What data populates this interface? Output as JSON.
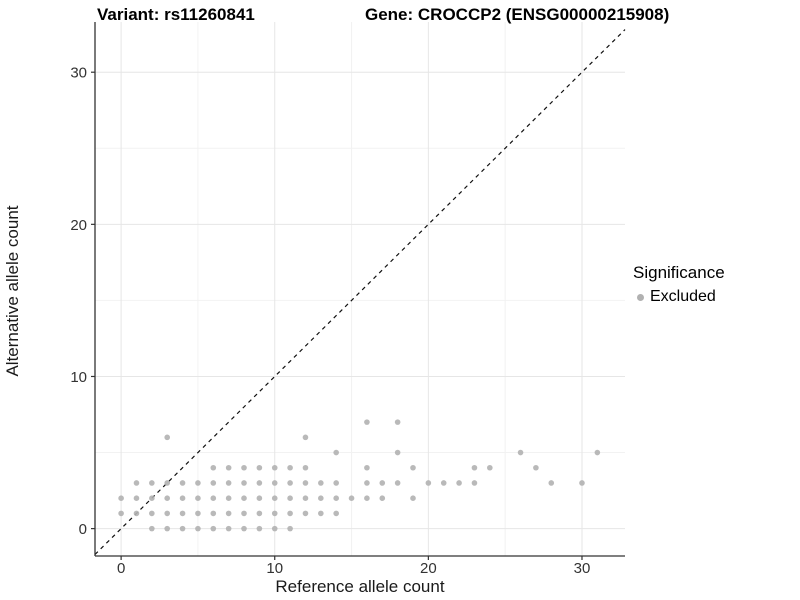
{
  "header": {
    "variant_title": "Variant: rs11260841",
    "gene_title": "Gene: CROCCP2 (ENSG00000215908)"
  },
  "legend": {
    "title": "Significance",
    "items": [
      {
        "label": "Excluded",
        "color": "#b1b1b1"
      }
    ]
  },
  "colors": {
    "background": "#ffffff",
    "point": "#b1b1b1",
    "grid_major": "#e6e6e6",
    "grid_minor": "#f2f2f2",
    "axis_line": "#333333",
    "tick_label": "#333333",
    "identity_line": "#111111"
  },
  "chart_data": {
    "type": "scatter",
    "title_left": "Variant: rs11260841",
    "title_right": "Gene: CROCCP2 (ENSG00000215908)",
    "xlabel": "Reference allele count",
    "ylabel": "Alternative allele count",
    "xlim": [
      -1.7,
      32.8
    ],
    "ylim": [
      -1.8,
      33.3
    ],
    "x_ticks": [
      0,
      10,
      20,
      30
    ],
    "y_ticks": [
      0,
      10,
      20,
      30
    ],
    "x_minor_ticks": [
      5,
      15,
      25
    ],
    "y_minor_ticks": [
      5,
      15,
      25
    ],
    "grid": true,
    "legend_position": "right",
    "identity_line": {
      "slope": 1,
      "intercept": 0,
      "style": "dashed"
    },
    "series": [
      {
        "name": "Excluded",
        "color": "#b1b1b1",
        "points": [
          [
            2,
            0
          ],
          [
            3,
            0
          ],
          [
            4,
            0
          ],
          [
            5,
            0
          ],
          [
            6,
            0
          ],
          [
            7,
            0
          ],
          [
            8,
            0
          ],
          [
            9,
            0
          ],
          [
            10,
            0
          ],
          [
            11,
            0
          ],
          [
            0,
            1
          ],
          [
            1,
            1
          ],
          [
            2,
            1
          ],
          [
            3,
            1
          ],
          [
            4,
            1
          ],
          [
            5,
            1
          ],
          [
            6,
            1
          ],
          [
            7,
            1
          ],
          [
            8,
            1
          ],
          [
            9,
            1
          ],
          [
            10,
            1
          ],
          [
            11,
            1
          ],
          [
            12,
            1
          ],
          [
            13,
            1
          ],
          [
            14,
            1
          ],
          [
            0,
            2
          ],
          [
            1,
            2
          ],
          [
            2,
            2
          ],
          [
            3,
            2
          ],
          [
            4,
            2
          ],
          [
            5,
            2
          ],
          [
            6,
            2
          ],
          [
            7,
            2
          ],
          [
            8,
            2
          ],
          [
            9,
            2
          ],
          [
            10,
            2
          ],
          [
            11,
            2
          ],
          [
            12,
            2
          ],
          [
            13,
            2
          ],
          [
            14,
            2
          ],
          [
            15,
            2
          ],
          [
            16,
            2
          ],
          [
            17,
            2
          ],
          [
            19,
            2
          ],
          [
            1,
            3
          ],
          [
            2,
            3
          ],
          [
            3,
            3
          ],
          [
            4,
            3
          ],
          [
            5,
            3
          ],
          [
            6,
            3
          ],
          [
            7,
            3
          ],
          [
            8,
            3
          ],
          [
            9,
            3
          ],
          [
            10,
            3
          ],
          [
            11,
            3
          ],
          [
            12,
            3
          ],
          [
            13,
            3
          ],
          [
            14,
            3
          ],
          [
            16,
            3
          ],
          [
            17,
            3
          ],
          [
            18,
            3
          ],
          [
            20,
            3
          ],
          [
            21,
            3
          ],
          [
            22,
            3
          ],
          [
            23,
            3
          ],
          [
            28,
            3
          ],
          [
            30,
            3
          ],
          [
            6,
            4
          ],
          [
            7,
            4
          ],
          [
            8,
            4
          ],
          [
            9,
            4
          ],
          [
            10,
            4
          ],
          [
            11,
            4
          ],
          [
            12,
            4
          ],
          [
            16,
            4
          ],
          [
            19,
            4
          ],
          [
            23,
            4
          ],
          [
            24,
            4
          ],
          [
            27,
            4
          ],
          [
            14,
            5
          ],
          [
            18,
            5
          ],
          [
            26,
            5
          ],
          [
            31,
            5
          ],
          [
            3,
            6
          ],
          [
            12,
            6
          ],
          [
            16,
            7
          ],
          [
            18,
            7
          ]
        ]
      }
    ]
  }
}
